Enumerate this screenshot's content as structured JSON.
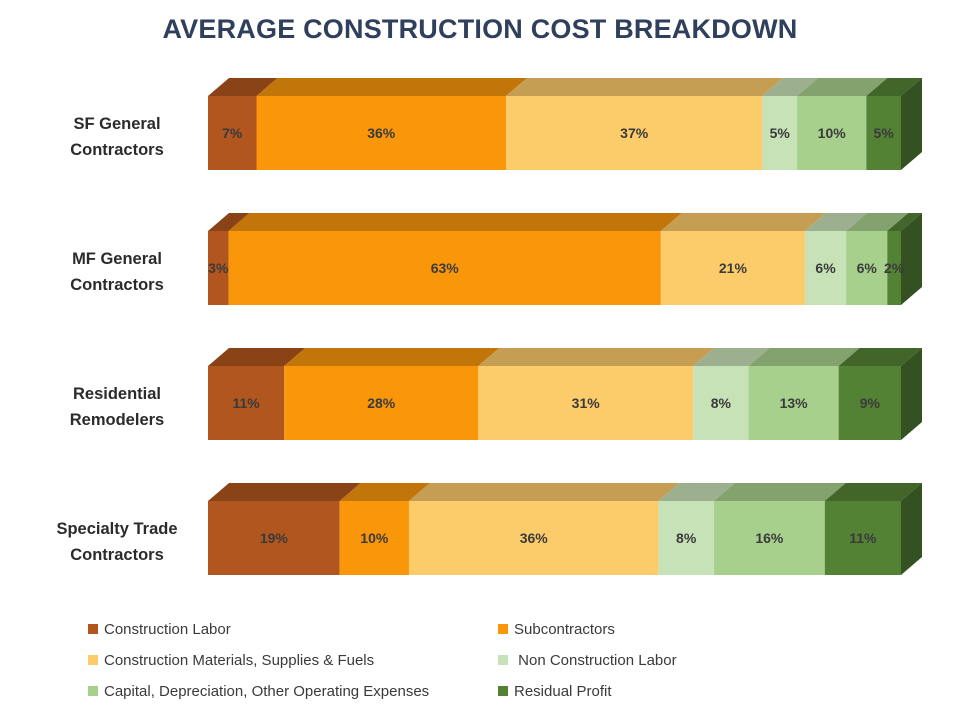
{
  "chart_data": {
    "type": "bar",
    "orientation": "horizontal",
    "stacked": "100%",
    "style": "3d",
    "title": "AVERAGE CONSTRUCTION COST BREAKDOWN",
    "categories": [
      [
        "SF General",
        "Contractors"
      ],
      [
        "MF General",
        "Contractors"
      ],
      [
        "Residential",
        "Remodelers"
      ],
      [
        "Specialty Trade",
        "Contractors"
      ]
    ],
    "series": [
      {
        "name": "Construction Labor",
        "color": "#b0561e",
        "values": [
          7,
          3,
          11,
          19
        ],
        "labels": [
          "7%",
          "3%",
          "11%",
          "19%"
        ]
      },
      {
        "name": "Subcontractors",
        "color": "#f9960a",
        "values": [
          36,
          63,
          28,
          10
        ],
        "labels": [
          "36%",
          "63%",
          "28%",
          "10%"
        ]
      },
      {
        "name": "Construction Materials, Supplies & Fuels",
        "color": "#fccb6a",
        "values": [
          37,
          21,
          31,
          36
        ],
        "labels": [
          "37%",
          "21%",
          "31%",
          "36%"
        ]
      },
      {
        "name": " Non Construction Labor",
        "color": "#c8e2b8",
        "values": [
          5,
          6,
          8,
          8
        ],
        "labels": [
          "5%",
          "6%",
          "8%",
          "8%"
        ]
      },
      {
        "name": "Capital, Depreciation, Other Operating Expenses",
        "color": "#a8d08d",
        "values": [
          10,
          6,
          13,
          16
        ],
        "labels": [
          "10%",
          "6%",
          "13%",
          "16%"
        ]
      },
      {
        "name": "Residual Profit",
        "color": "#548235",
        "values": [
          5,
          2,
          9,
          11
        ],
        "labels": [
          "5%",
          "2%",
          "9%",
          "11%"
        ]
      }
    ],
    "xlim": [
      0,
      100
    ],
    "legend_position": "bottom"
  }
}
